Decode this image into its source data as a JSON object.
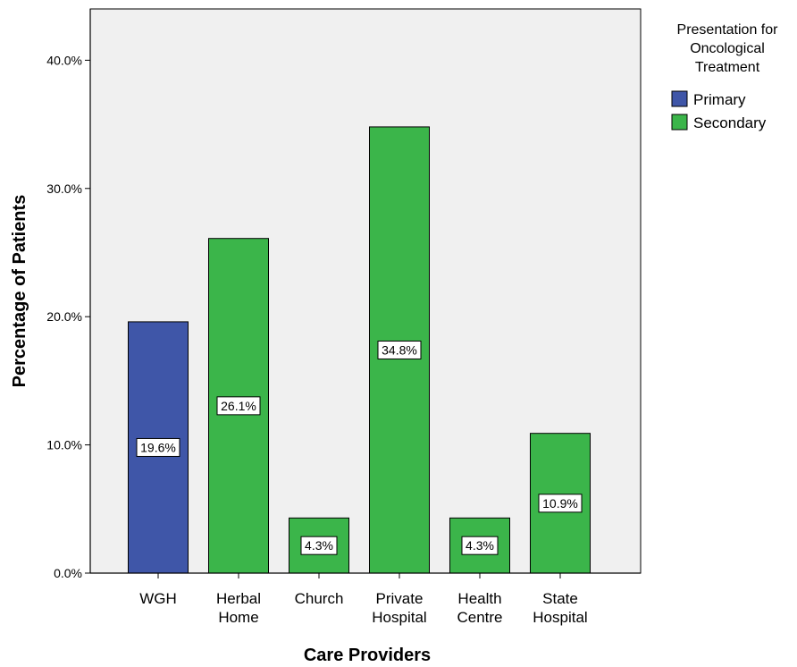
{
  "chart_data": {
    "type": "bar",
    "title": "",
    "xlabel": "Care Providers",
    "ylabel": "Percentage of Patients",
    "ylim": [
      0,
      44
    ],
    "yticks": [
      0,
      10,
      20,
      30,
      40
    ],
    "ytick_labels": [
      "0.0%",
      "10.0%",
      "20.0%",
      "30.0%",
      "40.0%"
    ],
    "grid": false,
    "legend": {
      "title": "Presentation for Oncological Treatment",
      "title_lines": [
        "Presentation for",
        "Oncological",
        "Treatment"
      ],
      "placement": "top-right, outside plot",
      "entries": [
        {
          "name": "Primary",
          "color": "#3f56a8"
        },
        {
          "name": "Secondary",
          "color": "#3bb54a"
        }
      ]
    },
    "categories": [
      "WGH",
      "Herbal Home",
      "Church",
      "Private Hospital",
      "Health Centre",
      "State Hospital"
    ],
    "category_lines": [
      [
        "WGH"
      ],
      [
        "Herbal",
        "Home"
      ],
      [
        "Church"
      ],
      [
        "Private",
        "Hospital"
      ],
      [
        "Health",
        "Centre"
      ],
      [
        "State",
        "Hospital"
      ]
    ],
    "bars": [
      {
        "category": "WGH",
        "value": 19.6,
        "label": "19.6%",
        "series": "Primary"
      },
      {
        "category": "Herbal Home",
        "value": 26.1,
        "label": "26.1%",
        "series": "Secondary"
      },
      {
        "category": "Church",
        "value": 4.3,
        "label": "4.3%",
        "series": "Secondary"
      },
      {
        "category": "Private Hospital",
        "value": 34.8,
        "label": "34.8%",
        "series": "Secondary"
      },
      {
        "category": "Health Centre",
        "value": 4.3,
        "label": "4.3%",
        "series": "Secondary"
      },
      {
        "category": "State Hospital",
        "value": 10.9,
        "label": "10.9%",
        "series": "Secondary"
      }
    ],
    "colors": {
      "plot_background": "#f0f0f0",
      "primary": "#3f56a8",
      "secondary": "#3bb54a"
    }
  }
}
